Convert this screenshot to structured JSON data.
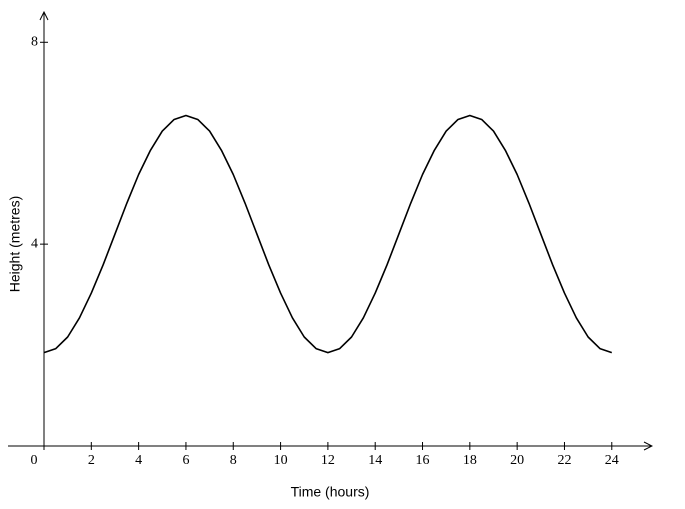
{
  "chart_data": {
    "type": "line",
    "x_label": "Time (hours)",
    "y_label": "Height (metres)",
    "x": [
      0,
      0.5,
      1,
      1.5,
      2,
      2.5,
      3,
      3.5,
      4,
      4.5,
      5,
      5.5,
      6,
      6.5,
      7,
      7.5,
      8,
      8.5,
      9,
      9.5,
      10,
      10.5,
      11,
      11.5,
      12,
      12.5,
      13,
      13.5,
      14,
      14.5,
      15,
      15.5,
      16,
      16.5,
      17,
      17.5,
      18,
      18.5,
      19,
      19.5,
      20,
      20.5,
      21,
      21.5,
      22,
      22.5,
      23,
      23.5,
      24
    ],
    "values": [
      1.85,
      1.93,
      2.16,
      2.54,
      3.03,
      3.59,
      4.2,
      4.81,
      5.38,
      5.86,
      6.24,
      6.47,
      6.55,
      6.47,
      6.24,
      5.86,
      5.38,
      4.81,
      4.2,
      3.59,
      3.03,
      2.54,
      2.16,
      1.93,
      1.85,
      1.93,
      2.16,
      2.54,
      3.03,
      3.59,
      4.2,
      4.81,
      5.38,
      5.86,
      6.24,
      6.47,
      6.55,
      6.47,
      6.24,
      5.86,
      5.38,
      4.81,
      4.2,
      3.59,
      3.03,
      2.54,
      2.16,
      1.93,
      1.85
    ],
    "color": "#000000",
    "xlim": [
      0,
      25.7
    ],
    "ylim": [
      0,
      8.6
    ],
    "xticks": [
      0,
      2,
      4,
      6,
      8,
      10,
      12,
      14,
      16,
      18,
      20,
      22,
      24
    ],
    "yticks": [
      4,
      8
    ],
    "grid": false
  }
}
